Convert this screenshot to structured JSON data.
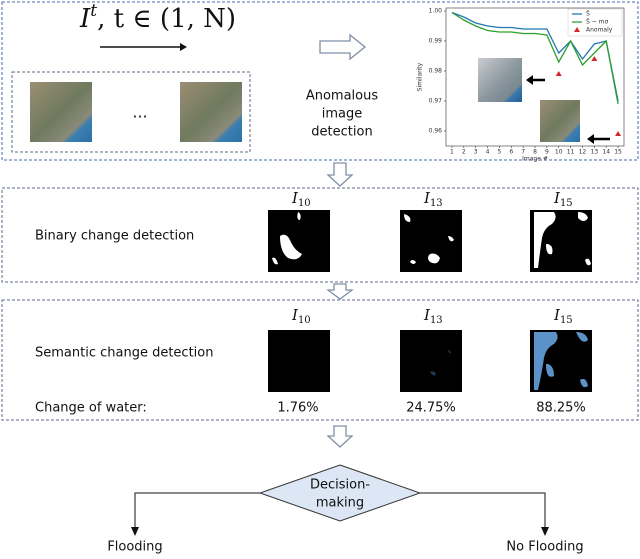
{
  "formula": {
    "symbol": "I",
    "superscript": "t",
    "rest": ", t ∈ (1, N)"
  },
  "ellipsis": "...",
  "anomaly_step": [
    "Anomalous",
    "image",
    "detection"
  ],
  "chart_data": {
    "type": "line",
    "x_label": "Image #",
    "y_label": "Similarity",
    "x": [
      1,
      2,
      3,
      4,
      5,
      6,
      7,
      8,
      9,
      10,
      11,
      12,
      13,
      14,
      15
    ],
    "xlim": [
      0.5,
      15.5
    ],
    "xticks": [
      1,
      2,
      3,
      4,
      5,
      6,
      7,
      8,
      9,
      10,
      11,
      12,
      13,
      14,
      15
    ],
    "ylim": [
      0.955,
      1.001
    ],
    "yticks": [
      0.96,
      0.97,
      0.98,
      0.99,
      {
        "value": 1,
        "label": "1.00"
      }
    ],
    "legend": "upper right",
    "series": [
      {
        "name": "S̄",
        "color": "#1f77b4",
        "values": [
          0.9995,
          0.998,
          0.996,
          0.995,
          0.9945,
          0.9945,
          0.994,
          0.994,
          0.994,
          0.986,
          0.99,
          0.984,
          0.989,
          0.99,
          0.97
        ]
      },
      {
        "name": "S̄ − mσ",
        "color": "#2ca02c",
        "values": [
          0.9995,
          0.997,
          0.995,
          0.9935,
          0.993,
          0.993,
          0.9925,
          0.9925,
          0.992,
          0.983,
          0.99,
          0.982,
          0.986,
          0.99,
          0.969
        ]
      }
    ],
    "anomaly": {
      "name": "Anomaly",
      "color": "#d62728",
      "x": [
        10,
        13,
        15
      ],
      "values": [
        0.979,
        0.984,
        0.959
      ]
    }
  },
  "binary": {
    "label": "Binary change detection",
    "images": [
      {
        "symbol": "I",
        "subscript": "10"
      },
      {
        "symbol": "I",
        "subscript": "13"
      },
      {
        "symbol": "I",
        "subscript": "15"
      }
    ]
  },
  "semantic": {
    "label": "Semantic change detection",
    "change_label": "Change of water:",
    "images": [
      {
        "symbol": "I",
        "subscript": "10",
        "change": "1.76%"
      },
      {
        "symbol": "I",
        "subscript": "13",
        "change": "24.75%"
      },
      {
        "symbol": "I",
        "subscript": "15",
        "change": "88.25%"
      }
    ]
  },
  "decision": {
    "lines": [
      "Decision-",
      "making"
    ],
    "outcomes": [
      "Flooding",
      "No Flooding"
    ]
  }
}
